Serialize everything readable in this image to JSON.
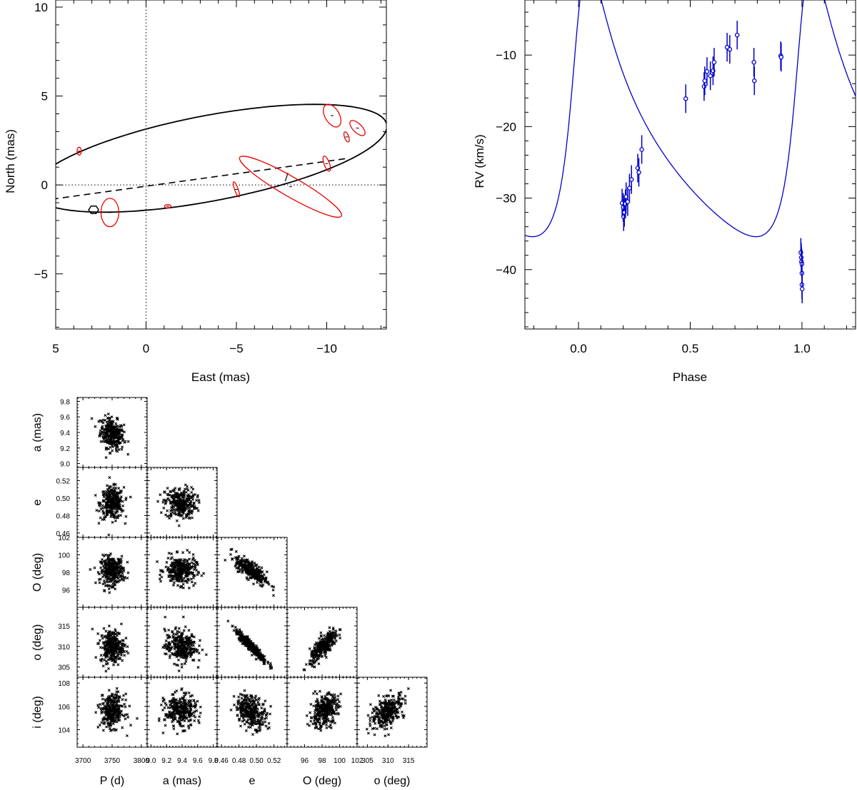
{
  "chart_data": [
    {
      "type": "scatter",
      "name": "astrometric-orbit",
      "title": "",
      "xlabel": "East (mas)",
      "ylabel": "North (mas)",
      "xlim": [
        5,
        -13.3
      ],
      "ylim": [
        -8.1,
        10.4
      ],
      "x_ticks": [
        5,
        0,
        -5,
        -10
      ],
      "x_tick_labels": [
        "5",
        "0",
        "−5",
        "−10"
      ],
      "y_ticks": [
        10,
        5,
        0,
        -5
      ],
      "y_tick_labels": [
        "10",
        "5",
        "0",
        "−5"
      ],
      "orbit_ellipse": {
        "center": [
          -3.5,
          1.5
        ],
        "semi_major": 10.0,
        "semi_minor": 2.4,
        "tilt_deg": 11
      },
      "line_of_nodes": [
        [
          5.2,
          -0.8
        ],
        [
          -11.2,
          1.5
        ]
      ],
      "periastron_tick": [
        -7.7,
        0.45
      ],
      "primary_marker": [
        2.9,
        -1.4
      ],
      "measurements": [
        {
          "x": 3.7,
          "y": 1.9,
          "rx": 0.12,
          "ry": 0.22,
          "angle": 0
        },
        {
          "x": 2.0,
          "y": -1.55,
          "rx": 0.5,
          "ry": 0.8,
          "angle": 0
        },
        {
          "x": -1.2,
          "y": -1.2,
          "rx": 0.18,
          "ry": 0.1,
          "angle": 0
        },
        {
          "x": -5.0,
          "y": -0.25,
          "rx": 0.1,
          "ry": 0.45,
          "angle": 20
        },
        {
          "x": -8.0,
          "y": -0.1,
          "rx": 3.3,
          "ry": 0.55,
          "angle": -30
        },
        {
          "x": -10.0,
          "y": 1.2,
          "rx": 0.15,
          "ry": 0.45,
          "angle": 20
        },
        {
          "x": -10.3,
          "y": 3.9,
          "rx": 0.4,
          "ry": 0.7,
          "angle": 30
        },
        {
          "x": -11.1,
          "y": 2.7,
          "rx": 0.12,
          "ry": 0.3,
          "angle": 20
        },
        {
          "x": -11.7,
          "y": 3.2,
          "rx": 0.25,
          "ry": 0.55,
          "angle": 45
        }
      ]
    },
    {
      "type": "line",
      "name": "radial-velocity-curve",
      "title": "",
      "xlabel": "Phase",
      "ylabel": "RV (km/s)",
      "xlim": [
        -0.24,
        1.24
      ],
      "ylim": [
        -48.3,
        -2.3
      ],
      "x_ticks": [
        0.0,
        0.5,
        1.0
      ],
      "x_tick_labels": [
        "0.0",
        "0.5",
        "1.0"
      ],
      "y_ticks": [
        -10,
        -20,
        -30,
        -40
      ],
      "y_tick_labels": [
        "−10",
        "−20",
        "−30",
        "−40"
      ],
      "model": {
        "period_phase": 1,
        "K": 19,
        "e": 0.5,
        "omega_deg": 310,
        "gamma": -22.5,
        "periastron_phase": 0.0
      },
      "points": [
        {
          "phase": 0.195,
          "rv": -30.7,
          "err": 2.0
        },
        {
          "phase": 0.2,
          "rv": -31.3,
          "err": 2.0
        },
        {
          "phase": 0.202,
          "rv": -32.6,
          "err": 2.0
        },
        {
          "phase": 0.205,
          "rv": -32.0,
          "err": 2.0
        },
        {
          "phase": 0.21,
          "rv": -30.8,
          "err": 2.0
        },
        {
          "phase": 0.213,
          "rv": -29.8,
          "err": 2.0
        },
        {
          "phase": 0.22,
          "rv": -30.5,
          "err": 2.0
        },
        {
          "phase": 0.228,
          "rv": -28.6,
          "err": 2.0
        },
        {
          "phase": 0.237,
          "rv": -27.4,
          "err": 2.0
        },
        {
          "phase": 0.265,
          "rv": -25.8,
          "err": 2.0
        },
        {
          "phase": 0.27,
          "rv": -26.4,
          "err": 2.0
        },
        {
          "phase": 0.283,
          "rv": -23.2,
          "err": 2.0
        },
        {
          "phase": 0.48,
          "rv": -16.1,
          "err": 2.0
        },
        {
          "phase": 0.562,
          "rv": -14.4,
          "err": 2.0
        },
        {
          "phase": 0.565,
          "rv": -13.6,
          "err": 2.0
        },
        {
          "phase": 0.575,
          "rv": -12.3,
          "err": 2.0
        },
        {
          "phase": 0.59,
          "rv": -12.9,
          "err": 2.0
        },
        {
          "phase": 0.602,
          "rv": -12.2,
          "err": 2.0
        },
        {
          "phase": 0.607,
          "rv": -11.0,
          "err": 2.0
        },
        {
          "phase": 0.665,
          "rv": -8.9,
          "err": 2.0
        },
        {
          "phase": 0.677,
          "rv": -9.2,
          "err": 2.0
        },
        {
          "phase": 0.71,
          "rv": -7.2,
          "err": 2.0
        },
        {
          "phase": 0.785,
          "rv": -11.0,
          "err": 2.0
        },
        {
          "phase": 0.787,
          "rv": -13.6,
          "err": 2.0
        },
        {
          "phase": 0.905,
          "rv": -10.1,
          "err": 2.0
        },
        {
          "phase": 0.907,
          "rv": -10.3,
          "err": 2.0
        },
        {
          "phase": 0.995,
          "rv": -37.6,
          "err": 2.0
        },
        {
          "phase": 0.997,
          "rv": -38.3,
          "err": 2.0
        },
        {
          "phase": 0.998,
          "rv": -38.9,
          "err": 2.0
        },
        {
          "phase": 1.0,
          "rv": -39.2,
          "err": 2.0
        },
        {
          "phase": 1.0,
          "rv": -40.5,
          "err": 2.0
        },
        {
          "phase": 1.0,
          "rv": -42.1,
          "err": 2.0
        },
        {
          "phase": 1.001,
          "rv": -42.7,
          "err": 2.0
        }
      ]
    },
    {
      "type": "scatter",
      "name": "posterior-corner-plot",
      "title": "",
      "samples_per_panel": 300,
      "parameters": [
        {
          "label": "P (d)",
          "mean": 3750,
          "sd": 10,
          "range": [
            3690,
            3810
          ],
          "ticks": [
            3700,
            3750,
            3800
          ],
          "tick_labels": [
            "3700",
            "3750",
            "3800"
          ]
        },
        {
          "label": "a (mas)",
          "mean": 9.38,
          "sd": 0.1,
          "range": [
            8.95,
            9.85
          ],
          "ticks": [
            9.0,
            9.2,
            9.4,
            9.6,
            9.8
          ],
          "tick_labels": [
            "9.0",
            "9.2",
            "9.4",
            "9.6",
            "9.8"
          ]
        },
        {
          "label": "e",
          "mean": 0.494,
          "sd": 0.009,
          "range": [
            0.455,
            0.535
          ],
          "ticks": [
            0.46,
            0.48,
            0.5,
            0.52
          ],
          "tick_labels": [
            "0.46",
            "0.48",
            "0.50",
            "0.52"
          ]
        },
        {
          "label": "O (deg)",
          "mean": 98.2,
          "sd": 0.8,
          "range": [
            94.0,
            102.0
          ],
          "ticks": [
            96,
            98,
            100,
            102
          ],
          "tick_labels": [
            "96",
            "98",
            "100",
            "102"
          ]
        },
        {
          "label": "o (deg)",
          "mean": 310.0,
          "sd": 2.0,
          "range": [
            302.5,
            319.5
          ],
          "ticks": [
            305,
            310,
            315
          ],
          "tick_labels": [
            "305",
            "310",
            "315"
          ]
        },
        {
          "label": "i (deg)",
          "mean": 105.6,
          "sd": 0.7,
          "range": [
            102.5,
            108.5
          ],
          "ticks": [
            104,
            106,
            108
          ],
          "tick_labels": [
            "104",
            "106",
            "108"
          ]
        }
      ],
      "correlations": [
        {
          "pair": [
            "P (d)",
            "a (mas)"
          ],
          "r": -0.25
        },
        {
          "pair": [
            "e",
            "O (deg)"
          ],
          "r": -0.75
        },
        {
          "pair": [
            "e",
            "o (deg)"
          ],
          "r": -0.95
        },
        {
          "pair": [
            "O (deg)",
            "o (deg)"
          ],
          "r": 0.8
        },
        {
          "pair": [
            "e",
            "i (deg)"
          ],
          "r": -0.3
        },
        {
          "pair": [
            "O (deg)",
            "i (deg)"
          ],
          "r": 0.35
        },
        {
          "pair": [
            "o (deg)",
            "i (deg)"
          ],
          "r": 0.5
        }
      ]
    }
  ]
}
